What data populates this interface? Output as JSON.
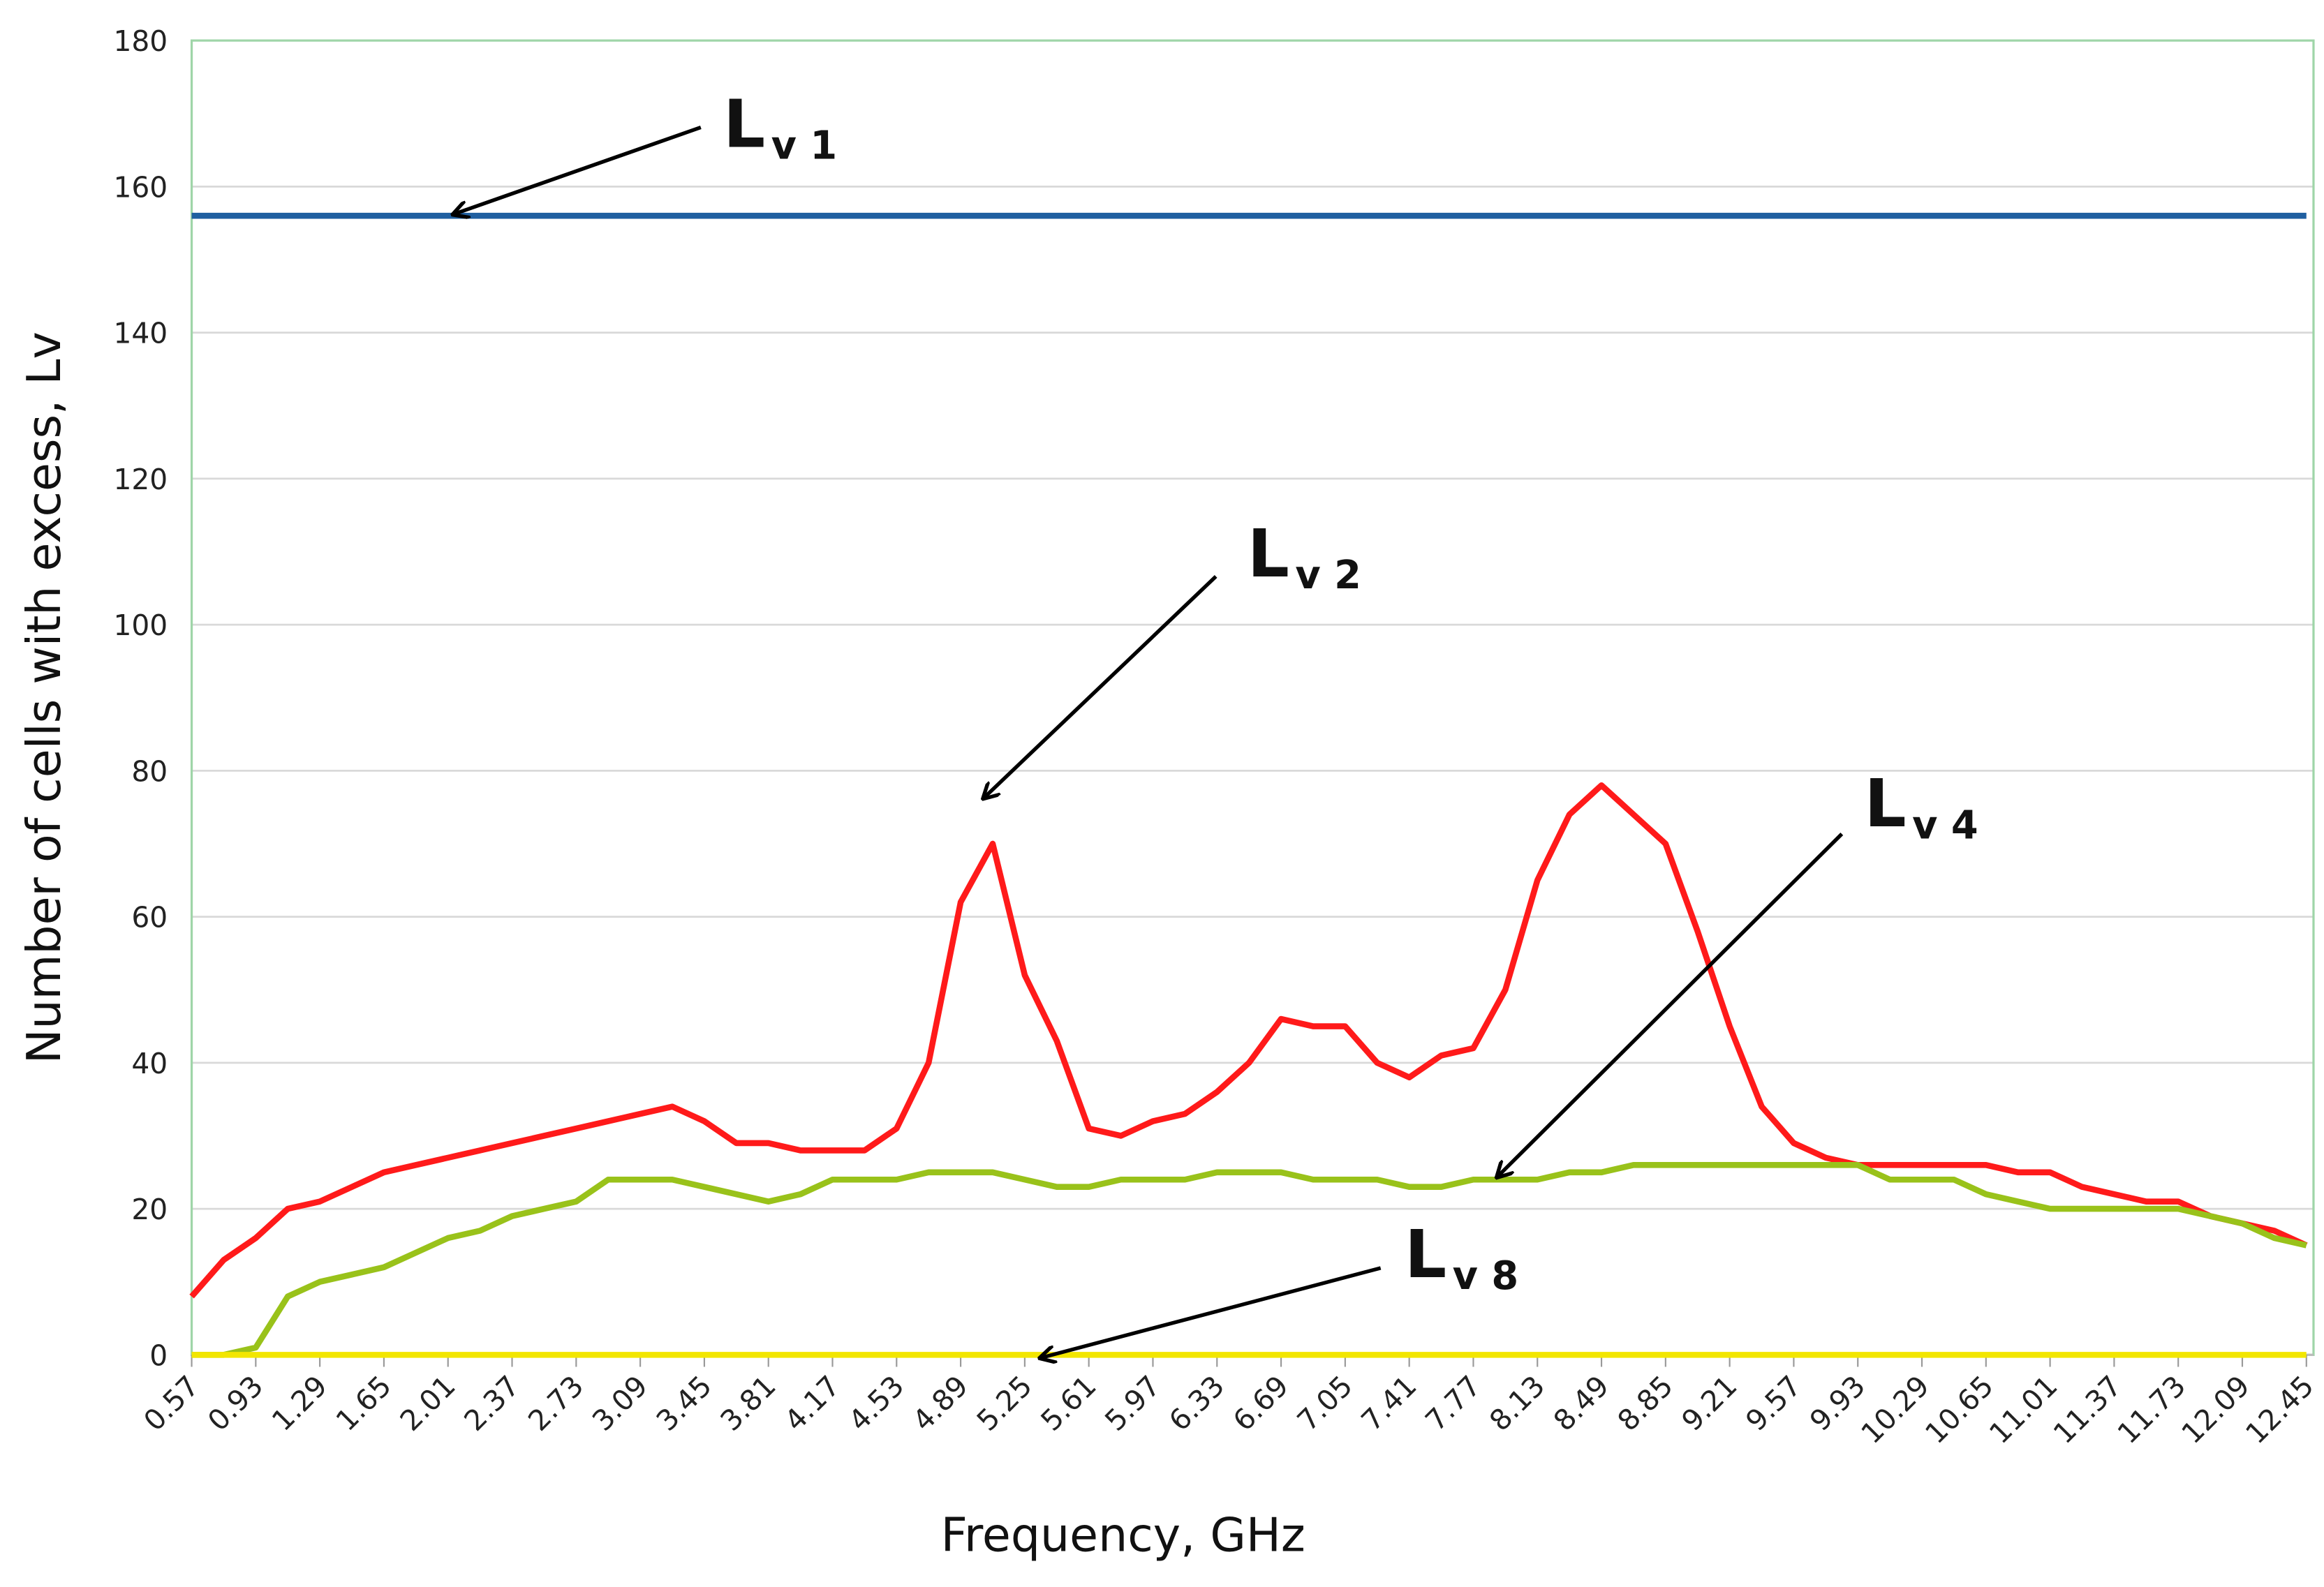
{
  "chart_data": {
    "type": "line",
    "xlabel": "Frequency, GHz",
    "ylabel": "Number of cells with excess, Lv",
    "x": [
      0.57,
      0.75,
      0.93,
      1.11,
      1.29,
      1.47,
      1.65,
      1.83,
      2.01,
      2.19,
      2.37,
      2.55,
      2.73,
      2.91,
      3.09,
      3.27,
      3.45,
      3.63,
      3.81,
      3.99,
      4.17,
      4.35,
      4.53,
      4.71,
      4.89,
      5.07,
      5.25,
      5.43,
      5.61,
      5.79,
      5.97,
      6.15,
      6.33,
      6.51,
      6.69,
      6.87,
      7.05,
      7.23,
      7.41,
      7.59,
      7.77,
      7.95,
      8.13,
      8.31,
      8.49,
      8.67,
      8.85,
      9.03,
      9.21,
      9.39,
      9.57,
      9.75,
      9.93,
      10.11,
      10.29,
      10.47,
      10.65,
      10.83,
      11.01,
      11.19,
      11.37,
      11.55,
      11.73,
      11.91,
      12.09,
      12.27,
      12.45
    ],
    "series": [
      {
        "color": "#1f5fa0",
        "x": [
          0.57,
          12.45
        ],
        "values": [
          156,
          156
        ]
      },
      {
        "color": "#ff1a1a",
        "values": [
          8,
          13,
          16,
          20,
          21,
          23,
          25,
          26,
          27,
          28,
          29,
          30,
          31,
          32,
          33,
          34,
          32,
          29,
          29,
          28,
          28,
          28,
          31,
          40,
          62,
          70,
          52,
          43,
          31,
          30,
          32,
          33,
          36,
          40,
          46,
          45,
          45,
          40,
          38,
          41,
          42,
          50,
          65,
          74,
          78,
          74,
          70,
          58,
          45,
          34,
          29,
          27,
          26,
          26,
          26,
          26,
          26,
          25,
          25,
          23,
          22,
          21,
          21,
          19,
          18,
          17,
          15
        ]
      },
      {
        "color": "#99c21a",
        "values": [
          0,
          0,
          1,
          8,
          10,
          11,
          12,
          14,
          16,
          17,
          19,
          20,
          21,
          24,
          24,
          24,
          23,
          22,
          21,
          22,
          24,
          24,
          24,
          25,
          25,
          25,
          24,
          23,
          23,
          24,
          24,
          24,
          25,
          25,
          25,
          24,
          24,
          24,
          23,
          23,
          24,
          24,
          24,
          25,
          25,
          26,
          26,
          26,
          26,
          26,
          26,
          26,
          26,
          24,
          24,
          24,
          22,
          21,
          20,
          20,
          20,
          20,
          20,
          19,
          18,
          16,
          15
        ]
      },
      {
        "color": "#f2e600",
        "x": [
          0.57,
          12.45
        ],
        "values": [
          0,
          0
        ]
      }
    ],
    "annotations": [
      {
        "text": "L",
        "sub": "v 1"
      },
      {
        "text": "L",
        "sub": "v 2"
      },
      {
        "text": "L",
        "sub": "v 4"
      },
      {
        "text": "L",
        "sub": "v 8"
      }
    ],
    "xlim": [
      0.57,
      12.49
    ],
    "xticks": [
      0.57,
      0.93,
      1.29,
      1.65,
      2.01,
      2.37,
      2.73,
      3.09,
      3.45,
      3.81,
      4.17,
      4.53,
      4.89,
      5.25,
      5.61,
      5.97,
      6.33,
      6.69,
      7.05,
      7.41,
      7.77,
      8.13,
      8.49,
      8.85,
      9.21,
      9.57,
      9.93,
      10.29,
      10.65,
      11.01,
      11.37,
      11.73,
      12.09,
      12.45
    ],
    "ylim": [
      0,
      180
    ],
    "yticks": [
      0,
      20,
      40,
      60,
      80,
      100,
      120,
      140,
      160,
      180
    ],
    "grid": true
  }
}
